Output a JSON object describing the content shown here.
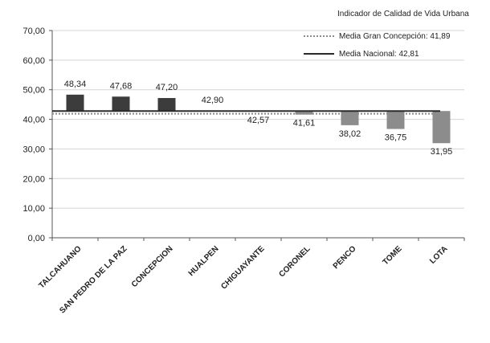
{
  "chart_data": {
    "type": "bar",
    "title": "",
    "legend_title": "Indicador de Calidad de Vida Urbana",
    "categories": [
      "TALCAHUANO",
      "SAN PEDRO DE LA PAZ",
      "CONCEPCION",
      "HUALPEN",
      "CHIGUAYANTE",
      "CORONEL",
      "PENCO",
      "TOME",
      "LOTA"
    ],
    "values": [
      48.34,
      47.68,
      47.2,
      42.9,
      42.57,
      41.61,
      38.02,
      36.75,
      31.95
    ],
    "value_labels": [
      "48,34",
      "47,68",
      "47,20",
      "42,90",
      "42,57",
      "41,61",
      "38,02",
      "36,75",
      "31,95"
    ],
    "bar_baseline": 42.81,
    "ylim": [
      0,
      70
    ],
    "yticks": [
      0,
      10,
      20,
      30,
      40,
      50,
      60,
      70
    ],
    "ytick_labels": [
      "0,00",
      "10,00",
      "20,00",
      "30,00",
      "40,00",
      "50,00",
      "60,00",
      "70,00"
    ],
    "xlabel": "",
    "ylabel": "",
    "grid": true,
    "legend_position": "top-right",
    "reference_lines": [
      {
        "name": "Media Gran Concepción",
        "label": "Media Gran Concepción: 41,89",
        "value": 41.89,
        "style": "dotted",
        "color": "#8a8a8a"
      },
      {
        "name": "Media Nacional",
        "label": "Media Nacional: 42,81",
        "value": 42.81,
        "style": "solid",
        "color": "#2a2a2a"
      }
    ],
    "colors": {
      "above": "#3c3c3c",
      "below": "#8c8c8c",
      "grid": "#d4d4d4",
      "axis": "#555555"
    }
  }
}
